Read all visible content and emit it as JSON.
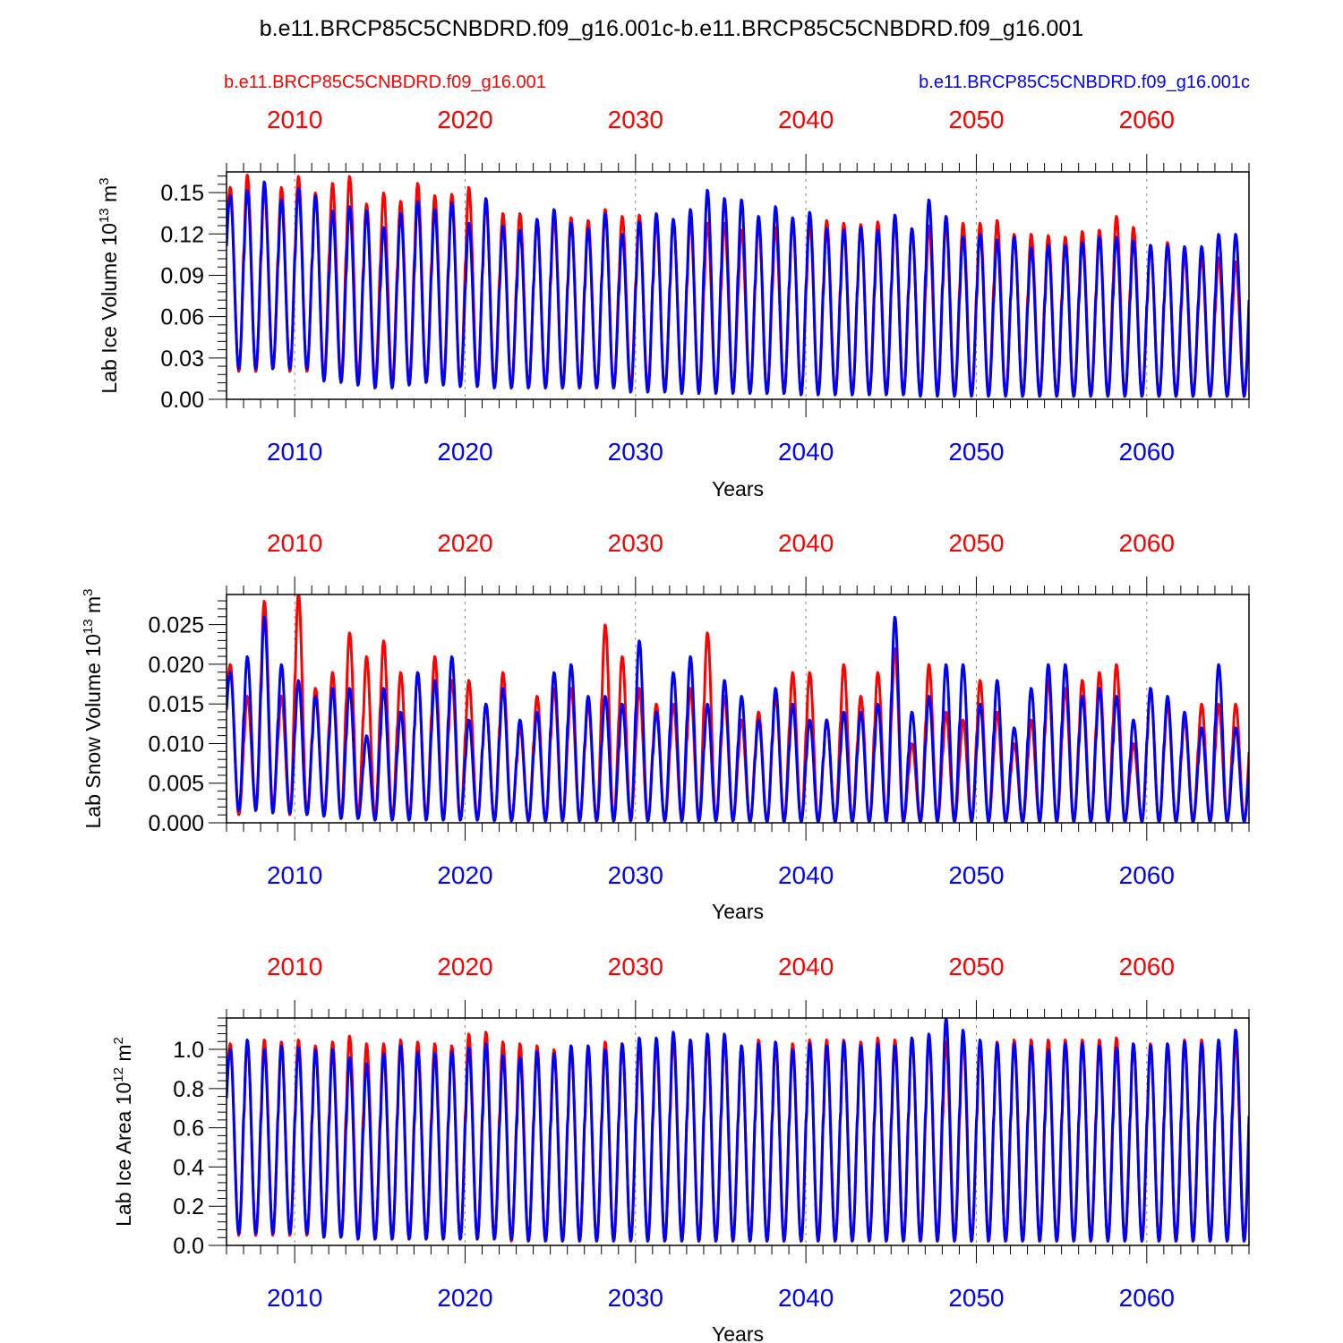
{
  "title": "b.e11.BRCP85C5CNBDRD.f09_g16.001c-b.e11.BRCP85C5CNBDRD.f09_g16.001",
  "legend": {
    "red_label": "b.e11.BRCP85C5CNBDRD.f09_g16.001",
    "blue_label": "b.e11.BRCP85C5CNBDRD.f09_g16.001c"
  },
  "colors": {
    "red": "#ff0000",
    "blue": "#0000ff",
    "axis": "#000000",
    "grid": "#888888"
  },
  "chart_data": [
    {
      "type": "line",
      "ylabel_main": "Lab Ice Volume 10",
      "ylabel_exp": "13",
      "ylabel_unit": " m",
      "ylabel_unit_exp": "3",
      "xlabel": "Years",
      "xlim": [
        2006,
        2066
      ],
      "ylim": [
        0,
        0.165
      ],
      "yticks": [
        0,
        0.03,
        0.06,
        0.09,
        0.12,
        0.15
      ],
      "ytick_labels": [
        "0.00",
        "0.03",
        "0.06",
        "0.09",
        "0.12",
        "0.15"
      ],
      "xticks": [
        2010,
        2020,
        2030,
        2040,
        2050,
        2060
      ],
      "xtick_labels": [
        "2010",
        "2020",
        "2030",
        "2040",
        "2050",
        "2060"
      ],
      "series": [
        {
          "color": "red",
          "peaks": [
            0.154,
            0.163,
            0.153,
            0.154,
            0.162,
            0.15,
            0.157,
            0.162,
            0.142,
            0.15,
            0.144,
            0.157,
            0.148,
            0.149,
            0.154,
            0.144,
            0.135,
            0.135,
            0.13,
            0.132,
            0.132,
            0.13,
            0.138,
            0.133,
            0.134,
            0.13,
            0.13,
            0.13,
            0.128,
            0.128,
            0.123,
            0.128,
            0.125,
            0.13,
            0.128,
            0.13,
            0.128,
            0.127,
            0.129,
            0.13,
            0.124,
            0.126,
            0.128,
            0.128,
            0.128,
            0.13,
            0.12,
            0.12,
            0.119,
            0.118,
            0.122,
            0.123,
            0.133,
            0.125,
            0.112,
            0.114,
            0.105,
            0.104,
            0.103,
            0.1
          ],
          "troughs": [
            0.02,
            0.02,
            0.022,
            0.02,
            0.02,
            0.015,
            0.015,
            0.015,
            0.012,
            0.012,
            0.012,
            0.012,
            0.012,
            0.01,
            0.01,
            0.01,
            0.008,
            0.008,
            0.008,
            0.008,
            0.008,
            0.008,
            0.008,
            0.008,
            0.008,
            0.006,
            0.006,
            0.006,
            0.006,
            0.006,
            0.005,
            0.004,
            0.004,
            0.004,
            0.004,
            0.004,
            0.004,
            0.004,
            0.004,
            0.004,
            0.003,
            0.003,
            0.003,
            0.003,
            0.003,
            0.003,
            0.002,
            0.002,
            0.002,
            0.002,
            0.002,
            0.002,
            0.002,
            0.002,
            0.002,
            0.002,
            0.002,
            0.002,
            0.002,
            0.002
          ]
        },
        {
          "color": "blue",
          "peaks": [
            0.148,
            0.152,
            0.158,
            0.145,
            0.153,
            0.148,
            0.137,
            0.14,
            0.137,
            0.125,
            0.135,
            0.144,
            0.138,
            0.143,
            0.128,
            0.146,
            0.126,
            0.123,
            0.131,
            0.138,
            0.128,
            0.124,
            0.135,
            0.12,
            0.129,
            0.135,
            0.131,
            0.138,
            0.152,
            0.146,
            0.145,
            0.133,
            0.14,
            0.132,
            0.136,
            0.124,
            0.123,
            0.125,
            0.123,
            0.134,
            0.124,
            0.145,
            0.133,
            0.118,
            0.12,
            0.116,
            0.118,
            0.11,
            0.112,
            0.112,
            0.114,
            0.118,
            0.118,
            0.115,
            0.112,
            0.112,
            0.111,
            0.111,
            0.12,
            0.12
          ],
          "troughs": [
            0.022,
            0.022,
            0.022,
            0.022,
            0.022,
            0.013,
            0.012,
            0.01,
            0.008,
            0.008,
            0.01,
            0.012,
            0.01,
            0.009,
            0.009,
            0.008,
            0.008,
            0.008,
            0.008,
            0.008,
            0.008,
            0.008,
            0.008,
            0.005,
            0.005,
            0.005,
            0.004,
            0.004,
            0.004,
            0.004,
            0.004,
            0.004,
            0.004,
            0.003,
            0.003,
            0.003,
            0.003,
            0.003,
            0.003,
            0.003,
            0.002,
            0.002,
            0.002,
            0.002,
            0.002,
            0.002,
            0.002,
            0.002,
            0.002,
            0.002,
            0.002,
            0.002,
            0.002,
            0.002,
            0.002,
            0.002,
            0.002,
            0.002,
            0.002,
            0.002
          ]
        }
      ]
    },
    {
      "type": "line",
      "ylabel_main": "Lab Snow Volume 10",
      "ylabel_exp": "13",
      "ylabel_unit": " m",
      "ylabel_unit_exp": "3",
      "xlabel": "Years",
      "xlim": [
        2006,
        2066
      ],
      "ylim": [
        0,
        0.0288
      ],
      "yticks": [
        0,
        0.005,
        0.01,
        0.015,
        0.02,
        0.025
      ],
      "ytick_labels": [
        "0.000",
        "0.005",
        "0.010",
        "0.015",
        "0.020",
        "0.025"
      ],
      "xticks": [
        2010,
        2020,
        2030,
        2040,
        2050,
        2060
      ],
      "xtick_labels": [
        "2010",
        "2020",
        "2030",
        "2040",
        "2050",
        "2060"
      ],
      "series": [
        {
          "color": "red",
          "peaks": [
            0.02,
            0.016,
            0.028,
            0.016,
            0.029,
            0.017,
            0.019,
            0.024,
            0.021,
            0.023,
            0.019,
            0.019,
            0.021,
            0.018,
            0.018,
            0.015,
            0.019,
            0.012,
            0.016,
            0.017,
            0.017,
            0.015,
            0.025,
            0.021,
            0.017,
            0.015,
            0.015,
            0.017,
            0.024,
            0.016,
            0.013,
            0.014,
            0.016,
            0.019,
            0.019,
            0.013,
            0.02,
            0.016,
            0.019,
            0.022,
            0.01,
            0.02,
            0.014,
            0.013,
            0.018,
            0.014,
            0.01,
            0.013,
            0.018,
            0.017,
            0.018,
            0.019,
            0.02,
            0.01,
            0.017,
            0.015,
            0.013,
            0.015,
            0.015,
            0.015
          ],
          "troughs": [
            0.001,
            0.002,
            0.002,
            0.001,
            0.001,
            0.001,
            0.0008,
            0.0008,
            0.0005,
            0.0005,
            0.0005,
            0.0005,
            0.0003,
            0.0003,
            0.0003,
            0.0003,
            0.0003,
            0.0002,
            0.0002,
            0.0002,
            0.0002,
            0.0002,
            0.0002,
            0.0002,
            0.0002,
            0.0002,
            0.0002,
            0.0002,
            0.0002,
            0.0002,
            0.0001,
            0.0001,
            0.0001,
            0.0001,
            0.0001,
            0.0001,
            0.0001,
            0.0001,
            0.0001,
            0.0001,
            0.0001,
            0.0001,
            0.0001,
            0.0001,
            0.0001,
            0.0001,
            0.0001,
            0.0001,
            0.0001,
            0.0001,
            0.0001,
            0.0001,
            0.0001,
            0.0001,
            0.0001,
            0.0001,
            0.0001,
            0.0001,
            0.0001,
            0.0001
          ]
        },
        {
          "color": "blue",
          "peaks": [
            0.019,
            0.021,
            0.026,
            0.02,
            0.018,
            0.016,
            0.017,
            0.017,
            0.011,
            0.017,
            0.014,
            0.019,
            0.018,
            0.021,
            0.013,
            0.015,
            0.017,
            0.013,
            0.014,
            0.019,
            0.02,
            0.016,
            0.016,
            0.015,
            0.023,
            0.014,
            0.019,
            0.021,
            0.015,
            0.018,
            0.016,
            0.013,
            0.017,
            0.015,
            0.013,
            0.013,
            0.014,
            0.014,
            0.015,
            0.026,
            0.014,
            0.016,
            0.02,
            0.02,
            0.015,
            0.018,
            0.012,
            0.017,
            0.02,
            0.02,
            0.016,
            0.017,
            0.016,
            0.013,
            0.017,
            0.016,
            0.014,
            0.012,
            0.02,
            0.012
          ],
          "troughs": [
            0.0015,
            0.0015,
            0.0012,
            0.0012,
            0.001,
            0.0008,
            0.0005,
            0.0005,
            0.0003,
            0.0003,
            0.0003,
            0.0003,
            0.0003,
            0.0003,
            0.0003,
            0.0002,
            0.0002,
            0.0002,
            0.0002,
            0.0002,
            0.0002,
            0.0002,
            0.0002,
            0.0002,
            0.0002,
            0.0002,
            0.0002,
            0.0002,
            0.0002,
            0.0002,
            0.0001,
            0.0001,
            0.0001,
            0.0001,
            0.0001,
            0.0001,
            0.0001,
            0.0001,
            0.0001,
            0.0001,
            0.0001,
            0.0001,
            0.0001,
            0.0001,
            0.0001,
            0.0001,
            0.0001,
            0.0001,
            0.0001,
            0.0001,
            0.0001,
            0.0001,
            0.0001,
            0.0001,
            0.0001,
            0.0001,
            0.0001,
            0.0001,
            0.0001,
            0.0001
          ]
        }
      ]
    },
    {
      "type": "line",
      "ylabel_main": "Lab Ice Area 10",
      "ylabel_exp": "12",
      "ylabel_unit": " m",
      "ylabel_unit_exp": "2",
      "xlabel": "Years",
      "xlim": [
        2006,
        2066
      ],
      "ylim": [
        0,
        1.16
      ],
      "yticks": [
        0,
        0.2,
        0.4,
        0.6,
        0.8,
        1.0
      ],
      "ytick_labels": [
        "0.0",
        "0.2",
        "0.4",
        "0.6",
        "0.8",
        "1.0"
      ],
      "xticks": [
        2010,
        2020,
        2030,
        2040,
        2050,
        2060
      ],
      "xtick_labels": [
        "2010",
        "2020",
        "2030",
        "2040",
        "2050",
        "2060"
      ],
      "series": [
        {
          "color": "red",
          "peaks": [
            1.03,
            1.04,
            1.05,
            1.04,
            1.05,
            1.02,
            1.04,
            1.07,
            1.03,
            1.03,
            1.05,
            1.04,
            1.03,
            1.02,
            1.08,
            1.09,
            1.04,
            1.03,
            1.02,
            1.0,
            1.0,
            1.0,
            1.04,
            1.03,
            1.02,
            1.03,
            1.05,
            1.05,
            1.05,
            1.05,
            1.02,
            1.05,
            1.03,
            1.03,
            1.05,
            1.05,
            1.05,
            1.04,
            1.06,
            1.05,
            1.06,
            1.05,
            1.04,
            1.05,
            1.03,
            1.04,
            1.05,
            1.05,
            1.05,
            1.05,
            1.05,
            1.05,
            1.06,
            1.03,
            1.03,
            1.03,
            1.05,
            1.05,
            1.04,
            1.05
          ],
          "troughs": [
            0.05,
            0.05,
            0.05,
            0.05,
            0.05,
            0.04,
            0.04,
            0.04,
            0.03,
            0.03,
            0.03,
            0.03,
            0.03,
            0.03,
            0.03,
            0.03,
            0.02,
            0.02,
            0.02,
            0.02,
            0.02,
            0.02,
            0.02,
            0.02,
            0.02,
            0.02,
            0.02,
            0.02,
            0.02,
            0.02,
            0.02,
            0.02,
            0.02,
            0.02,
            0.02,
            0.02,
            0.02,
            0.02,
            0.02,
            0.02,
            0.02,
            0.02,
            0.02,
            0.02,
            0.02,
            0.02,
            0.02,
            0.02,
            0.02,
            0.02,
            0.02,
            0.02,
            0.02,
            0.02,
            0.02,
            0.02,
            0.02,
            0.02,
            0.02,
            0.02
          ]
        },
        {
          "color": "blue",
          "peaks": [
            1.0,
            1.05,
            1.0,
            1.02,
            1.01,
            1.0,
            1.0,
            0.96,
            0.93,
            0.98,
            1.02,
            0.99,
            0.98,
            0.99,
            1.01,
            1.03,
            0.97,
            0.96,
            0.99,
            0.98,
            1.02,
            1.02,
            1.0,
            1.03,
            1.06,
            1.06,
            1.09,
            1.05,
            1.08,
            1.08,
            1.02,
            1.03,
            1.04,
            1.0,
            1.03,
            1.02,
            1.04,
            1.02,
            1.03,
            1.02,
            1.06,
            1.08,
            1.16,
            1.1,
            1.05,
            1.03,
            1.03,
            1.02,
            1.0,
            1.03,
            1.03,
            1.02,
            1.01,
            1.03,
            1.02,
            1.03,
            1.04,
            1.03,
            1.05,
            1.1
          ],
          "troughs": [
            0.06,
            0.06,
            0.06,
            0.06,
            0.06,
            0.04,
            0.04,
            0.03,
            0.03,
            0.03,
            0.03,
            0.03,
            0.03,
            0.03,
            0.03,
            0.03,
            0.03,
            0.02,
            0.02,
            0.02,
            0.02,
            0.02,
            0.02,
            0.02,
            0.02,
            0.02,
            0.02,
            0.02,
            0.02,
            0.02,
            0.02,
            0.02,
            0.02,
            0.02,
            0.02,
            0.02,
            0.02,
            0.02,
            0.02,
            0.02,
            0.02,
            0.02,
            0.02,
            0.02,
            0.02,
            0.02,
            0.02,
            0.02,
            0.02,
            0.02,
            0.02,
            0.02,
            0.02,
            0.02,
            0.02,
            0.02,
            0.02,
            0.02,
            0.02,
            0.02
          ]
        }
      ]
    }
  ]
}
